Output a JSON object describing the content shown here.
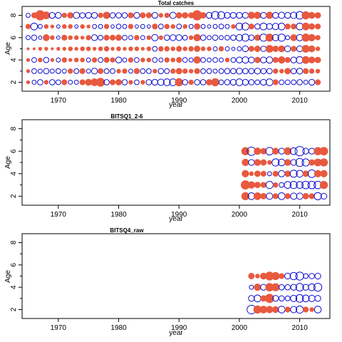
{
  "colors": {
    "positive": "#E8593F",
    "negative": "#1010D0",
    "frame": "#000000"
  },
  "chart_data": [
    {
      "type": "bubble",
      "title": "Total catches",
      "xlabel": "year",
      "ylabel": "Age",
      "xlim": [
        1964,
        2015
      ],
      "ylim": [
        1.2,
        8.8
      ],
      "xticks": [
        1970,
        1980,
        1990,
        2000,
        2010
      ],
      "yticks": [
        2,
        4,
        6,
        8
      ],
      "years": [
        1965,
        1966,
        1967,
        1968,
        1969,
        1970,
        1971,
        1972,
        1973,
        1974,
        1975,
        1976,
        1977,
        1978,
        1979,
        1980,
        1981,
        1982,
        1983,
        1984,
        1985,
        1986,
        1987,
        1988,
        1989,
        1990,
        1991,
        1992,
        1993,
        1994,
        1995,
        1996,
        1997,
        1998,
        1999,
        2000,
        2001,
        2002,
        2003,
        2004,
        2005,
        2006,
        2007,
        2008,
        2009,
        2010,
        2011,
        2012,
        2013
      ],
      "ages": [
        2,
        3,
        4,
        5,
        6,
        7,
        8
      ],
      "residuals": {
        "8": [
          -0.3,
          0.5,
          1.6,
          0.9,
          -0.6,
          -0.6,
          0.4,
          0.6,
          -0.7,
          -0.5,
          -0.6,
          -0.6,
          0.4,
          0.8,
          -0.5,
          -0.5,
          -0.5,
          0.5,
          -0.6,
          0.5,
          0.5,
          -0.6,
          0.3,
          0.4,
          -0.7,
          0.6,
          0.6,
          0.5,
          1.6,
          0.6,
          -0.6,
          -1.0,
          -0.9,
          -0.6,
          -0.6,
          -0.6,
          -0.6,
          0.8,
          0.8,
          -0.6,
          0.8,
          -0.6,
          -0.7,
          -0.6,
          -0.7,
          -1.0,
          1.0,
          0.7,
          0.6
        ],
        "7": [
          0.4,
          -0.8,
          -0.3,
          0.3,
          0.2,
          -0.2,
          0.3,
          0.3,
          -0.2,
          0.3,
          0.2,
          -0.3,
          -0.3,
          0.4,
          -0.2,
          -0.4,
          -0.3,
          0.4,
          -0.2,
          -0.3,
          -0.2,
          0.5,
          -0.4,
          0.4,
          0.3,
          -0.4,
          0.3,
          -0.3,
          0.6,
          -0.3,
          -0.2,
          -0.3,
          -0.4,
          -0.3,
          0.3,
          -0.8,
          -0.9,
          0.5,
          -0.5,
          -0.8,
          -0.6,
          -0.7,
          -0.8,
          0.5,
          0.5,
          -0.8,
          0.9,
          0.6,
          0.5
        ],
        "6": [
          -0.3,
          -0.5,
          -0.2,
          0.7,
          0.3,
          -0.2,
          0.5,
          0.3,
          0.3,
          0.2,
          0.4,
          -0.6,
          -0.4,
          0.5,
          0.5,
          0.6,
          -0.4,
          -0.3,
          0.4,
          -0.3,
          0.3,
          -0.7,
          0.3,
          -0.5,
          -0.6,
          -0.6,
          -0.4,
          0.3,
          0.8,
          -0.5,
          -0.3,
          -0.5,
          -0.3,
          -0.4,
          -0.5,
          -0.7,
          -0.9,
          -0.5,
          0.6,
          -0.9,
          1.0,
          -0.7,
          -0.9,
          -0.3,
          0.7,
          -0.7,
          1.0,
          0.8,
          0.4
        ],
        "5": [
          0.1,
          0.1,
          0.2,
          0.2,
          0.1,
          0.2,
          0.2,
          0.3,
          0.2,
          0.3,
          0.3,
          0.2,
          0.3,
          0.4,
          0.2,
          0.3,
          0.2,
          0.3,
          0.3,
          0.2,
          0.3,
          -0.4,
          0.4,
          0.4,
          0.3,
          0.5,
          0.3,
          0.4,
          0.6,
          0.3,
          0.3,
          -0.3,
          0.4,
          -0.3,
          -0.2,
          -0.3,
          -0.6,
          0.5,
          0.6,
          -0.5,
          0.9,
          0.6,
          0.7,
          -0.6,
          0.5,
          -0.6,
          0.9,
          0.7,
          0.3
        ],
        "4": [
          0.2,
          -0.4,
          0.3,
          -0.5,
          0.2,
          -0.3,
          0.4,
          0.2,
          0.3,
          0.3,
          -0.3,
          0.4,
          -0.4,
          0.5,
          0.4,
          -0.6,
          -0.3,
          0.4,
          -0.4,
          0.3,
          0.3,
          -0.4,
          -0.3,
          0.4,
          0.3,
          0.5,
          -0.4,
          -0.3,
          0.8,
          -0.4,
          -0.3,
          -0.4,
          -0.3,
          0.3,
          -0.4,
          -0.6,
          -0.7,
          -0.6,
          0.6,
          -0.6,
          -0.7,
          0.5,
          0.8,
          0.5,
          -0.6,
          -0.8,
          0.9,
          0.7,
          0.6
        ],
        "3": [
          0.2,
          -0.4,
          -0.3,
          -0.5,
          -0.3,
          -0.4,
          -0.3,
          0.4,
          -0.4,
          0.5,
          -0.3,
          -0.6,
          0.5,
          -0.4,
          -0.4,
          0.3,
          0.4,
          -0.3,
          0.5,
          -0.4,
          -0.4,
          0.3,
          -0.5,
          -0.4,
          0.4,
          0.6,
          0.4,
          0.3,
          0.5,
          -0.4,
          -0.4,
          -0.3,
          -0.4,
          -0.5,
          -0.5,
          -0.6,
          -0.5,
          -0.5,
          -0.6,
          -0.5,
          -0.5,
          0.4,
          0.3,
          0.6,
          -0.5,
          -0.6,
          0.5,
          0.4,
          0.3
        ],
        "2": [
          0.2,
          -0.3,
          -0.5,
          0.3,
          -0.5,
          -0.4,
          0.5,
          -0.3,
          -0.3,
          0.5,
          0.7,
          0.9,
          1.2,
          -0.5,
          0.5,
          0.6,
          -0.5,
          0.3,
          -0.4,
          0.3,
          -0.5,
          -0.6,
          -0.7,
          -0.8,
          -0.8,
          1.0,
          -0.5,
          0.4,
          -0.5,
          -0.5,
          0.6,
          1.0,
          -0.4,
          -0.5,
          -0.6,
          -0.8,
          -0.6,
          -0.5,
          -0.4,
          -0.6,
          -0.8,
          0.5,
          -0.4,
          -0.4,
          -0.4,
          -0.5,
          -0.3,
          -0.6,
          0.5
        ]
      }
    },
    {
      "type": "bubble",
      "title": "BITSQ1_2-6",
      "xlabel": "year",
      "ylabel": "Age",
      "xlim": [
        1964,
        2015
      ],
      "ylim": [
        1.2,
        8.8
      ],
      "xticks": [
        1970,
        1980,
        1990,
        2000,
        2010
      ],
      "yticks": [
        2,
        4,
        6,
        8
      ],
      "years": [
        2001,
        2002,
        2003,
        2004,
        2005,
        2006,
        2007,
        2008,
        2009,
        2010,
        2011,
        2012,
        2013,
        2014
      ],
      "ages": [
        2,
        3,
        4,
        5,
        6
      ],
      "residuals": {
        "6": [
          1.0,
          -1.2,
          0.8,
          0.6,
          -1.0,
          0.7,
          -0.6,
          0.9,
          -0.8,
          -1.5,
          -0.6,
          -0.6,
          1.0,
          1.1
        ],
        "5": [
          0.8,
          -0.6,
          0.7,
          0.6,
          0.3,
          -0.9,
          -0.8,
          0.7,
          -0.6,
          -1.1,
          -0.9,
          0.6,
          0.9,
          1.0
        ],
        "4": [
          0.8,
          0.3,
          0.6,
          0.5,
          -0.3,
          0.5,
          -0.7,
          0.6,
          -0.9,
          -0.8,
          0.6,
          -1.0,
          0.8,
          0.8
        ],
        "3": [
          1.3,
          0.8,
          0.6,
          0.5,
          -0.9,
          0.4,
          -0.4,
          -0.8,
          -0.9,
          -0.8,
          -1.0,
          -1.0,
          -1.0,
          1.0
        ],
        "2": [
          1.0,
          -0.8,
          0.9,
          0.6,
          -0.7,
          0.5,
          -0.8,
          0.5,
          -0.7,
          -0.7,
          0.6,
          0.5,
          -0.9,
          -0.6
        ]
      }
    },
    {
      "type": "bubble",
      "title": "BITSQ4_raw",
      "xlabel": "year",
      "ylabel": "Age",
      "xlim": [
        1964,
        2015
      ],
      "ylim": [
        1.2,
        8.8
      ],
      "xticks": [
        1970,
        1980,
        1990,
        2000,
        2010
      ],
      "yticks": [
        2,
        4,
        6,
        8
      ],
      "years": [
        2001,
        2002,
        2003,
        2004,
        2005,
        2006,
        2007,
        2008,
        2009,
        2010,
        2011,
        2012,
        2013
      ],
      "ages": [
        2,
        3,
        4,
        5
      ],
      "residuals": {
        "5": [
          null,
          0.6,
          0.3,
          0.7,
          1.2,
          1.0,
          0.5,
          -0.6,
          -0.9,
          -1.1,
          -0.4,
          -0.5,
          -0.6
        ],
        "4": [
          null,
          -0.3,
          0.8,
          -0.6,
          1.1,
          1.0,
          -0.5,
          -0.5,
          -0.6,
          -1.0,
          -0.6,
          -0.8,
          -1.1
        ],
        "3": [
          null,
          -0.6,
          -0.8,
          0.6,
          1.3,
          -0.6,
          -0.5,
          -0.4,
          -0.7,
          -1.0,
          -0.8,
          -0.7,
          -0.6
        ],
        "2": [
          null,
          -1.3,
          1.0,
          0.9,
          0.8,
          0.7,
          -0.8,
          0.5,
          -0.7,
          -0.9,
          0.5,
          0.3,
          -0.8
        ]
      }
    }
  ]
}
